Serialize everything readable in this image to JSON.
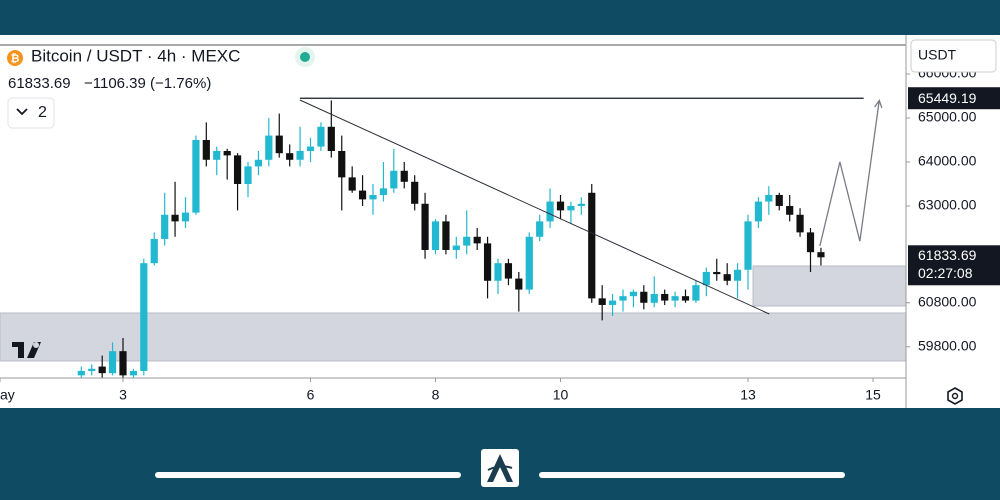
{
  "chart_data": {
    "type": "candlestick",
    "title": "Bitcoin / USDT · 4h · MEXC",
    "last_price": 61833.69,
    "change_text": "−1106.39 (−1.76%)",
    "indicator_count": "2",
    "currency": "USDT",
    "countdown": "02:27:08",
    "up_color": "#22b8d0",
    "down_color": "#111111",
    "xlim": [
      1.032,
      15.528
    ],
    "ylim": [
      59090,
      66659
    ],
    "xticks": [
      {
        "value": 1,
        "label": "ay"
      },
      3,
      6,
      8,
      10,
      13,
      15
    ],
    "yticks": [
      {
        "value": 66000,
        "label": "66000.00"
      },
      {
        "value": 65000,
        "label": "65000.00"
      },
      {
        "value": 64000,
        "label": "64000.00"
      },
      {
        "value": 63000,
        "label": "63000.00"
      },
      {
        "value": 60800,
        "label": "60800.00"
      },
      {
        "value": 59800,
        "label": "59800.00"
      }
    ],
    "x": [
      2.333,
      2.5,
      2.667,
      2.833,
      3,
      3.167,
      3.333,
      3.5,
      3.667,
      3.833,
      4,
      4.167,
      4.333,
      4.5,
      4.667,
      4.833,
      5,
      5.167,
      5.333,
      5.5,
      5.667,
      5.833,
      6,
      6.167,
      6.333,
      6.5,
      6.667,
      6.833,
      7,
      7.167,
      7.333,
      7.5,
      7.667,
      7.833,
      8,
      8.167,
      8.333,
      8.5,
      8.667,
      8.833,
      9,
      9.167,
      9.333,
      9.5,
      9.667,
      9.833,
      10,
      10.167,
      10.333,
      10.5,
      10.667,
      10.833,
      11,
      11.167,
      11.333,
      11.5,
      11.667,
      11.833,
      12,
      12.167,
      12.333,
      12.5,
      12.667,
      12.833,
      13,
      13.167,
      13.333,
      13.5,
      13.667,
      13.833,
      14,
      14.167
    ],
    "open": [
      59150,
      59250,
      59350,
      59200,
      59700,
      59150,
      59250,
      61700,
      62250,
      62800,
      62650,
      62850,
      64500,
      64050,
      64250,
      64150,
      63500,
      63900,
      64050,
      64600,
      64200,
      64050,
      64250,
      64350,
      64800,
      64250,
      63650,
      63350,
      63150,
      63250,
      63400,
      63800,
      63550,
      63050,
      62000,
      62650,
      62000,
      62100,
      62300,
      62150,
      61300,
      61700,
      61350,
      61100,
      62300,
      62650,
      63100,
      62900,
      63000,
      63300,
      60900,
      60750,
      60850,
      60950,
      61050,
      60800,
      61000,
      60850,
      60950,
      60850,
      61200,
      61500,
      61450,
      61300,
      61550,
      62650,
      63100,
      63250,
      63000,
      62800,
      62400,
      61950
    ],
    "high": [
      59350,
      59400,
      59600,
      59900,
      60000,
      59300,
      61800,
      62400,
      63300,
      63550,
      63200,
      64600,
      64900,
      64350,
      64300,
      64200,
      64000,
      64250,
      65000,
      65100,
      64400,
      64800,
      64550,
      64900,
      65400,
      64600,
      63900,
      63700,
      63500,
      64000,
      64300,
      64000,
      63700,
      63300,
      62700,
      62800,
      62300,
      62900,
      62500,
      62300,
      61800,
      61800,
      61500,
      62400,
      62800,
      63400,
      63250,
      63100,
      63200,
      63500,
      61200,
      61000,
      61100,
      61100,
      61200,
      61400,
      61100,
      61050,
      61100,
      61300,
      61600,
      61800,
      61700,
      61700,
      62800,
      63200,
      63450,
      63300,
      63250,
      62950,
      62500,
      62050
    ],
    "low": [
      59100,
      59150,
      59100,
      59150,
      59100,
      59100,
      59150,
      61650,
      62100,
      62300,
      62500,
      62800,
      63900,
      63700,
      63600,
      62900,
      63200,
      63700,
      63900,
      64100,
      63900,
      63900,
      64000,
      64250,
      64100,
      62900,
      63300,
      63000,
      62800,
      63100,
      63300,
      63400,
      62900,
      61800,
      61900,
      61900,
      61800,
      61900,
      62000,
      60900,
      61000,
      61200,
      60600,
      61000,
      62200,
      62500,
      62700,
      62600,
      62800,
      60800,
      60400,
      60500,
      60600,
      60700,
      60650,
      60700,
      60750,
      60700,
      60800,
      60800,
      60950,
      61300,
      61200,
      60900,
      61100,
      62500,
      62800,
      62900,
      62650,
      62300,
      61500,
      61650
    ],
    "close": [
      59250,
      59300,
      59200,
      59700,
      59150,
      59250,
      61700,
      62250,
      62800,
      62650,
      62850,
      64500,
      64050,
      64250,
      64150,
      63500,
      63900,
      64050,
      64600,
      64200,
      64050,
      64250,
      64350,
      64800,
      64250,
      63650,
      63350,
      63150,
      63250,
      63400,
      63800,
      63550,
      63050,
      62000,
      62650,
      62000,
      62100,
      62300,
      62150,
      61300,
      61700,
      61350,
      61100,
      62300,
      62650,
      63100,
      62900,
      63000,
      63050,
      60900,
      60750,
      60850,
      60950,
      61050,
      60800,
      61000,
      60850,
      60950,
      60850,
      61200,
      61500,
      61450,
      61300,
      61550,
      62650,
      63100,
      63250,
      63000,
      62800,
      62400,
      61950,
      61833.69
    ],
    "zones": [
      {
        "x": [
          1.032,
          15.528
        ],
        "y": [
          59477,
          60568
        ]
      },
      {
        "x": [
          13.08,
          15.528
        ],
        "y": [
          60727,
          61636
        ]
      }
    ],
    "level": {
      "x": [
        5.83,
        14.85
      ],
      "y": 65449.19
    },
    "trendline": {
      "x": [
        5.83,
        13.34
      ],
      "y": [
        65409,
        60545
      ]
    },
    "projection": {
      "x": [
        14.15,
        14.47,
        14.79,
        15.1
      ],
      "y": [
        62090,
        64000,
        62200,
        65400
      ]
    }
  }
}
